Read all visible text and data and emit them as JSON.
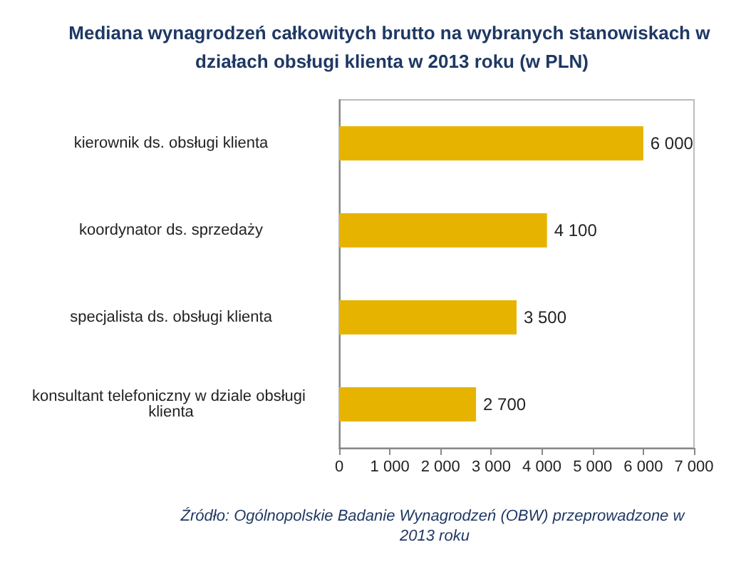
{
  "chart_data": {
    "type": "bar",
    "orientation": "horizontal",
    "title": "Mediana wynagrodzeń całkowitych brutto na wybranych stanowiskach w działach obsługi klienta w 2013 roku (w PLN)",
    "categories": [
      "kierownik ds. obsługi klienta",
      "koordynator ds. sprzedaży",
      "specjalista ds. obsługi klienta",
      "konsultant telefoniczny w dziale obsługi klienta"
    ],
    "values": [
      6000,
      4100,
      3500,
      2700
    ],
    "value_labels": [
      "6 000",
      "4 100",
      "3 500",
      "2 700"
    ],
    "color": "#e6b400",
    "xlim": [
      0,
      7000
    ],
    "xticks": [
      {
        "value": 0,
        "label": "0"
      },
      {
        "value": 1000,
        "label": "1 000"
      },
      {
        "value": 2000,
        "label": "2 000"
      },
      {
        "value": 3000,
        "label": "3 000"
      },
      {
        "value": 4000,
        "label": "4 000"
      },
      {
        "value": 5000,
        "label": "5 000"
      },
      {
        "value": 6000,
        "label": "6 000"
      },
      {
        "value": 7000,
        "label": "7 000"
      }
    ],
    "grid": false,
    "annotations": [
      "Źródło: Ogólnopolskie Badanie Wynagrodzeń (OBW) przeprowadzone w 2013 roku"
    ]
  }
}
